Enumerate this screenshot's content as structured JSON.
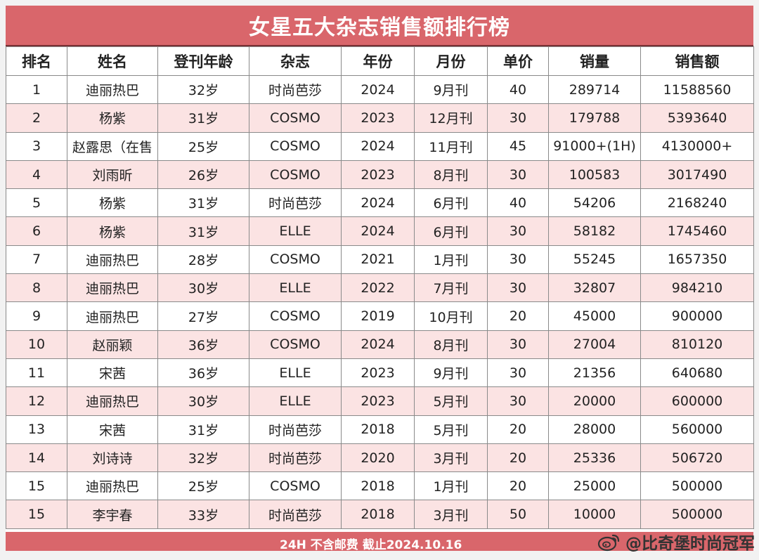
{
  "title": "女星五大杂志销售额排行榜",
  "columns": [
    "排名",
    "姓名",
    "登刊年龄",
    "杂志",
    "年份",
    "月份",
    "单价",
    "销量",
    "销售额"
  ],
  "rows": [
    [
      "1",
      "迪丽热巴",
      "32岁",
      "时尚芭莎",
      "2024",
      "9月刊",
      "40",
      "289714",
      "11588560"
    ],
    [
      "2",
      "杨紫",
      "31岁",
      "COSMO",
      "2023",
      "12月刊",
      "30",
      "179788",
      "5393640"
    ],
    [
      "3",
      "赵露思（在售",
      "25岁",
      "COSMO",
      "2024",
      "11月刊",
      "45",
      "91000+(1H)",
      "4130000+"
    ],
    [
      "4",
      "刘雨昕",
      "26岁",
      "COSMO",
      "2023",
      "8月刊",
      "30",
      "100583",
      "3017490"
    ],
    [
      "5",
      "杨紫",
      "31岁",
      "时尚芭莎",
      "2024",
      "6月刊",
      "40",
      "54206",
      "2168240"
    ],
    [
      "6",
      "杨紫",
      "31岁",
      "ELLE",
      "2024",
      "6月刊",
      "30",
      "58182",
      "1745460"
    ],
    [
      "7",
      "迪丽热巴",
      "28岁",
      "COSMO",
      "2021",
      "1月刊",
      "30",
      "55245",
      "1657350"
    ],
    [
      "8",
      "迪丽热巴",
      "30岁",
      "ELLE",
      "2022",
      "7月刊",
      "30",
      "32807",
      "984210"
    ],
    [
      "9",
      "迪丽热巴",
      "27岁",
      "COSMO",
      "2019",
      "10月刊",
      "20",
      "45000",
      "900000"
    ],
    [
      "10",
      "赵丽颖",
      "36岁",
      "COSMO",
      "2024",
      "8月刊",
      "30",
      "27004",
      "810120"
    ],
    [
      "11",
      "宋茜",
      "36岁",
      "ELLE",
      "2023",
      "9月刊",
      "30",
      "21356",
      "640680"
    ],
    [
      "12",
      "迪丽热巴",
      "30岁",
      "ELLE",
      "2023",
      "5月刊",
      "30",
      "20000",
      "600000"
    ],
    [
      "13",
      "宋茜",
      "31岁",
      "时尚芭莎",
      "2018",
      "5月刊",
      "20",
      "28000",
      "560000"
    ],
    [
      "14",
      "刘诗诗",
      "32岁",
      "时尚芭莎",
      "2020",
      "3月刊",
      "20",
      "25336",
      "506720"
    ],
    [
      "15",
      "迪丽热巴",
      "25岁",
      "COSMO",
      "2018",
      "1月刊",
      "20",
      "25000",
      "500000"
    ],
    [
      "15",
      "李宇春",
      "33岁",
      "时尚芭莎",
      "2018",
      "3月刊",
      "50",
      "10000",
      "500000"
    ]
  ],
  "footer_note": "24H  不含邮费  截止2024.10.16",
  "watermark": "@比奇堡时尚冠军",
  "watermark_icon": "weibo-icon",
  "colors": {
    "header_bar": "#d9666b",
    "row_pink": "#fbe3e3",
    "row_white": "#ffffff"
  }
}
